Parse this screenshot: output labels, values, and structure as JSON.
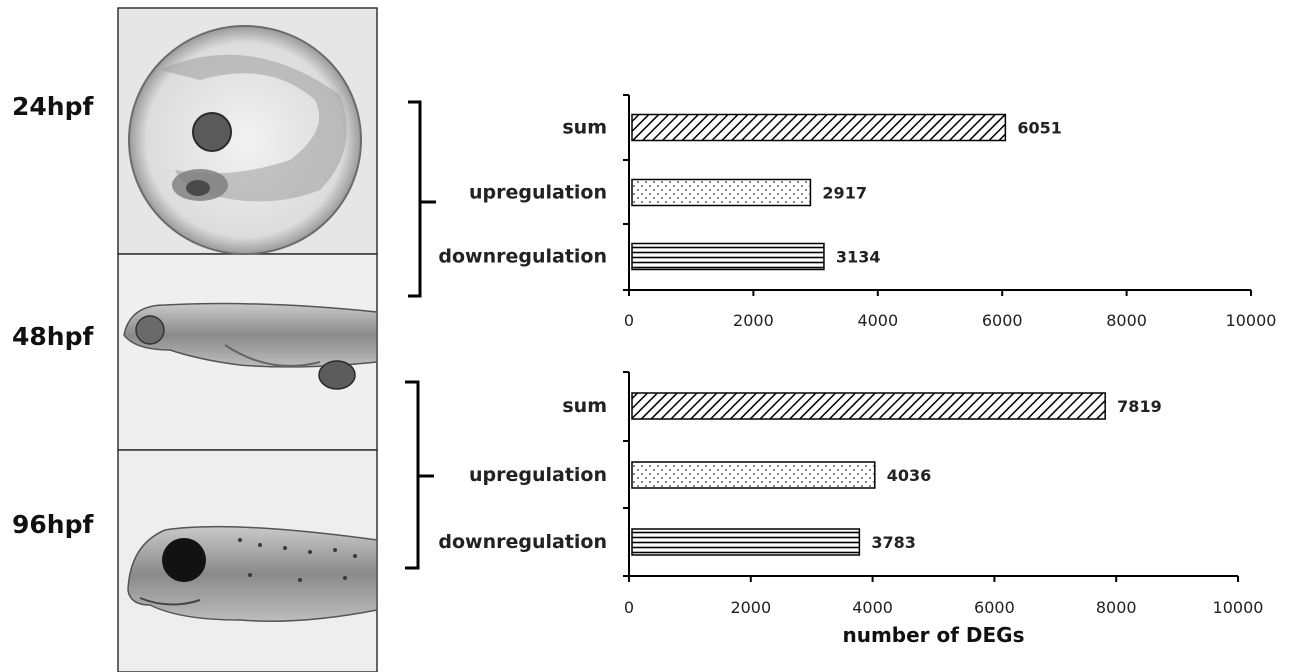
{
  "stages": [
    "24hpf",
    "48hpf",
    "96hpf"
  ],
  "chart_data": [
    {
      "type": "bar",
      "orientation": "horizontal",
      "stage": "24hpf vs 48hpf",
      "categories": [
        "sum",
        "upregulation",
        "downregulation"
      ],
      "values": [
        6051,
        2917,
        3134
      ],
      "patterns": [
        "diagonal-hatch",
        "dots",
        "horizontal-lines"
      ],
      "xlim": [
        0,
        10000
      ],
      "xticks": [
        0,
        2000,
        4000,
        6000,
        8000,
        10000
      ],
      "xlabel": ""
    },
    {
      "type": "bar",
      "orientation": "horizontal",
      "stage": "48hpf vs 96hpf",
      "categories": [
        "sum",
        "upregulation",
        "downregulation"
      ],
      "values": [
        7819,
        4036,
        3783
      ],
      "patterns": [
        "diagonal-hatch",
        "dots",
        "horizontal-lines"
      ],
      "xlim": [
        0,
        10000
      ],
      "xticks": [
        0,
        2000,
        4000,
        6000,
        8000,
        10000
      ],
      "xlabel": "number of DEGs"
    }
  ]
}
